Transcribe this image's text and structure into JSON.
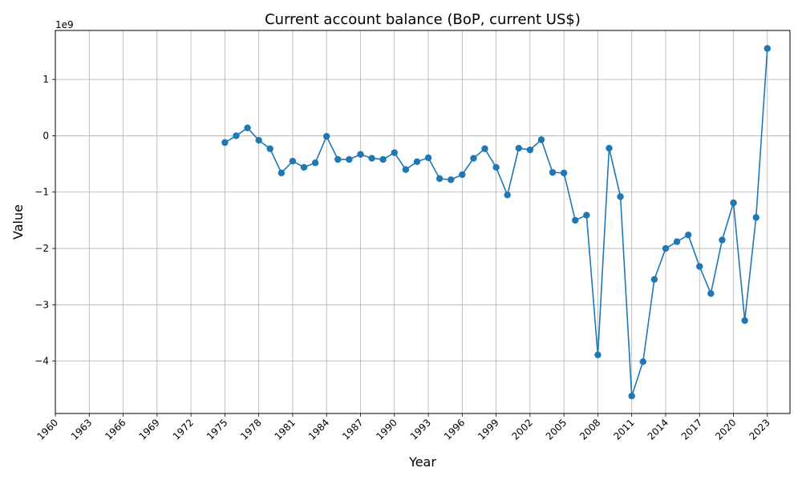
{
  "chart_data": {
    "type": "line",
    "title": "Current account balance (BoP, current US$)",
    "xlabel": "Year",
    "ylabel": "Value",
    "y_offset_text": "1e9",
    "y_scale": 1000000000,
    "xlim": [
      1960,
      2025
    ],
    "ylim": [
      -4.93,
      1.87
    ],
    "x_ticks": [
      1960,
      1963,
      1966,
      1969,
      1972,
      1975,
      1978,
      1981,
      1984,
      1987,
      1990,
      1993,
      1996,
      1999,
      2002,
      2005,
      2008,
      2011,
      2014,
      2017,
      2020,
      2023
    ],
    "x_tick_labels": [
      "1960",
      "1963",
      "1966",
      "1969",
      "1972",
      "1975",
      "1978",
      "1981",
      "1984",
      "1987",
      "1990",
      "1993",
      "1996",
      "1999",
      "2002",
      "2005",
      "2008",
      "2011",
      "2014",
      "2017",
      "2020",
      "2023"
    ],
    "y_ticks": [
      -4,
      -3,
      -2,
      -1,
      0,
      1
    ],
    "y_tick_labels": [
      "−4",
      "−3",
      "−2",
      "−1",
      "0",
      "1"
    ],
    "grid": true,
    "color": "#1f77b4",
    "series": [
      {
        "x": [
          1975,
          1976,
          1977,
          1978,
          1979,
          1980,
          1981,
          1982,
          1983,
          1984,
          1985,
          1986,
          1987,
          1988,
          1989,
          1990,
          1991,
          1992,
          1993,
          1994,
          1995,
          1996,
          1997,
          1998,
          1999,
          2000,
          2001,
          2002,
          2003,
          2004,
          2005,
          2006,
          2007,
          2008,
          2009,
          2010,
          2011,
          2012,
          2013,
          2014,
          2015,
          2016,
          2017,
          2018,
          2019,
          2020,
          2021,
          2022,
          2023
        ],
        "values": [
          -0.12,
          0.0,
          0.14,
          -0.08,
          -0.23,
          -0.66,
          -0.45,
          -0.56,
          -0.48,
          -0.01,
          -0.42,
          -0.42,
          -0.33,
          -0.4,
          -0.42,
          -0.3,
          -0.6,
          -0.46,
          -0.39,
          -0.76,
          -0.78,
          -0.69,
          -0.4,
          -0.23,
          -0.56,
          -1.05,
          -0.22,
          -0.25,
          -0.07,
          -0.65,
          -0.66,
          -1.5,
          -1.41,
          -3.89,
          -0.22,
          -1.08,
          -4.62,
          -4.01,
          -2.55,
          -2.0,
          -1.88,
          -1.76,
          -2.32,
          -2.8,
          -1.85,
          -1.19,
          -3.28,
          -1.45,
          1.55
        ]
      }
    ]
  }
}
